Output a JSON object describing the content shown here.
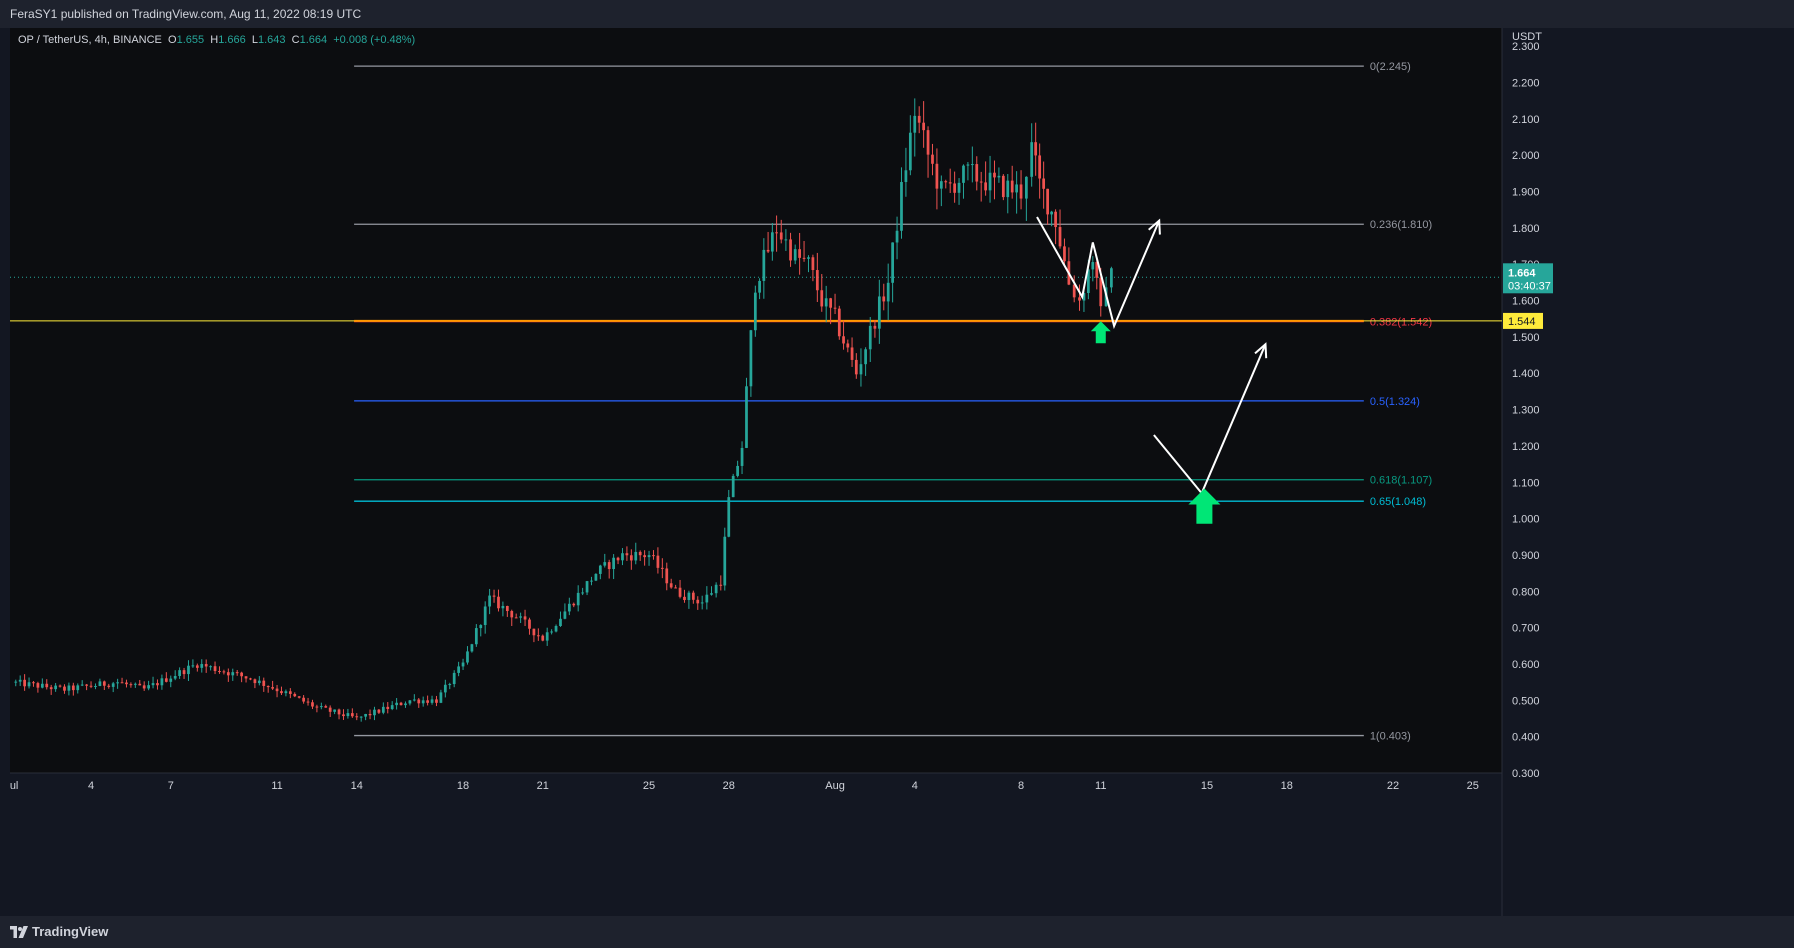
{
  "header": {
    "publish_line": "FeraSY1 published on TradingView.com, Aug 11, 2022 08:19 UTC"
  },
  "legend": {
    "symbol": "OP / TetherUS, 4h, BINANCE",
    "o_label": "O",
    "o_value": "1.655",
    "h_label": "H",
    "h_value": "1.666",
    "l_label": "L",
    "l_value": "1.643",
    "c_label": "C",
    "c_value": "1.664",
    "change": "+0.008 (+0.48%)"
  },
  "footer": {
    "brand": "TradingView"
  },
  "colors": {
    "background": "#131722",
    "panel": "#1e222d",
    "bullish": "#26a69a",
    "bearish": "#ef5350",
    "support_line": "#ff9800",
    "price_tag": "#26a69a",
    "level_tag": "#ffeb3b",
    "arrow_green": "#00e676",
    "path_white": "#ffffff"
  },
  "icons": {
    "logo": "tradingview-logo-icon",
    "up_arrow": "green-up-arrow-icon"
  },
  "chart_data": {
    "type": "candlestick",
    "y_axis": {
      "unit_label": "USDT",
      "min": 0.3,
      "max": 2.35,
      "ticks": [
        0.3,
        0.4,
        0.5,
        0.6,
        0.7,
        0.8,
        0.9,
        1.0,
        1.1,
        1.2,
        1.3,
        1.4,
        1.5,
        1.6,
        1.7,
        1.8,
        1.9,
        2.0,
        2.1,
        2.2,
        2.3
      ],
      "tick_labels": [
        "0.300",
        "0.400",
        "0.500",
        "0.600",
        "0.700",
        "0.800",
        "0.900",
        "1.000",
        "1.100",
        "1.200",
        "1.300",
        "1.400",
        "1.500",
        "1.600",
        "1.700",
        "1.800",
        "1.900",
        "2.000",
        "2.100",
        "2.200",
        "2.300"
      ]
    },
    "x_axis": {
      "labels": [
        {
          "day": 0,
          "text": "Jul"
        },
        {
          "day": 3,
          "text": "4"
        },
        {
          "day": 6,
          "text": "7"
        },
        {
          "day": 10,
          "text": "11"
        },
        {
          "day": 13,
          "text": "14"
        },
        {
          "day": 17,
          "text": "18"
        },
        {
          "day": 20,
          "text": "21"
        },
        {
          "day": 24,
          "text": "25"
        },
        {
          "day": 27,
          "text": "28"
        },
        {
          "day": 31,
          "text": "Aug"
        },
        {
          "day": 34,
          "text": "4"
        },
        {
          "day": 38,
          "text": "8"
        },
        {
          "day": 41,
          "text": "11"
        },
        {
          "day": 45,
          "text": "15"
        },
        {
          "day": 48,
          "text": "18"
        },
        {
          "day": 52,
          "text": "22"
        },
        {
          "day": 55,
          "text": "25"
        }
      ],
      "day_min": -0.05,
      "day_max": 56.1
    },
    "fib_levels": [
      {
        "ratio": "0",
        "price": 2.245,
        "label": "0(2.245)",
        "color": "#9598a1"
      },
      {
        "ratio": "0.236",
        "price": 1.81,
        "label": "0.236(1.810)",
        "color": "#9598a1"
      },
      {
        "ratio": "0.382",
        "price": 1.542,
        "label": "0.382(1.542)",
        "color": "#f23645"
      },
      {
        "ratio": "0.5",
        "price": 1.324,
        "label": "0.5(1.324)",
        "color": "#2962ff"
      },
      {
        "ratio": "0.618",
        "price": 1.107,
        "label": "0.618(1.107)",
        "color": "#089981"
      },
      {
        "ratio": "0.65",
        "price": 1.048,
        "label": "0.65(1.048)",
        "color": "#00bcd4"
      },
      {
        "ratio": "1",
        "price": 0.403,
        "label": "1(0.403)",
        "color": "#9598a1"
      }
    ],
    "fib_start_day": 12.9,
    "fib_end_day": 50.9,
    "support_line": {
      "price": 1.544,
      "label": "1.544"
    },
    "last_price": {
      "price": 1.664,
      "label": "1.664",
      "countdown": "03:40:37"
    },
    "waypoints": [
      {
        "day": 0,
        "price": 0.55
      },
      {
        "day": 2,
        "price": 0.53
      },
      {
        "day": 4,
        "price": 0.55
      },
      {
        "day": 5,
        "price": 0.53
      },
      {
        "day": 7,
        "price": 0.6
      },
      {
        "day": 9,
        "price": 0.56
      },
      {
        "day": 10,
        "price": 0.53
      },
      {
        "day": 11.5,
        "price": 0.48
      },
      {
        "day": 13,
        "price": 0.45
      },
      {
        "day": 15,
        "price": 0.5
      },
      {
        "day": 16,
        "price": 0.5
      },
      {
        "day": 17,
        "price": 0.6
      },
      {
        "day": 18,
        "price": 0.78
      },
      {
        "day": 19,
        "price": 0.73
      },
      {
        "day": 20,
        "price": 0.67
      },
      {
        "day": 21,
        "price": 0.76
      },
      {
        "day": 22,
        "price": 0.85
      },
      {
        "day": 23,
        "price": 0.9
      },
      {
        "day": 24,
        "price": 0.9
      },
      {
        "day": 25,
        "price": 0.8
      },
      {
        "day": 26,
        "price": 0.77
      },
      {
        "day": 26.7,
        "price": 0.83
      },
      {
        "day": 27,
        "price": 1.05
      },
      {
        "day": 27.5,
        "price": 1.2
      },
      {
        "day": 28,
        "price": 1.65
      },
      {
        "day": 28.8,
        "price": 1.8
      },
      {
        "day": 29.5,
        "price": 1.72
      },
      {
        "day": 30,
        "price": 1.7
      },
      {
        "day": 30.5,
        "price": 1.6
      },
      {
        "day": 31,
        "price": 1.55
      },
      {
        "day": 31.8,
        "price": 1.4
      },
      {
        "day": 32.5,
        "price": 1.55
      },
      {
        "day": 33,
        "price": 1.65
      },
      {
        "day": 33.5,
        "price": 1.9
      },
      {
        "day": 34,
        "price": 2.12
      },
      {
        "day": 34.5,
        "price": 2.0
      },
      {
        "day": 35,
        "price": 1.9
      },
      {
        "day": 36,
        "price": 1.95
      },
      {
        "day": 37,
        "price": 1.92
      },
      {
        "day": 38,
        "price": 1.9
      },
      {
        "day": 38.4,
        "price": 2.02
      },
      {
        "day": 38.7,
        "price": 1.92
      },
      {
        "day": 39.3,
        "price": 1.82
      },
      {
        "day": 39.8,
        "price": 1.65
      },
      {
        "day": 40.2,
        "price": 1.6
      },
      {
        "day": 40.7,
        "price": 1.72
      },
      {
        "day": 41,
        "price": 1.56
      },
      {
        "day": 41.2,
        "price": 1.66
      },
      {
        "day": 41.4,
        "price": 1.664
      }
    ],
    "volatility": 0.018,
    "annotations": {
      "scenario_1": [
        {
          "day": 38.6,
          "price": 1.83
        },
        {
          "day": 40.3,
          "price": 1.61
        },
        {
          "day": 40.7,
          "price": 1.76
        },
        {
          "day": 41.5,
          "price": 1.53
        },
        {
          "day": 43.2,
          "price": 1.82
        }
      ],
      "scenario_2": [
        {
          "day": 43.0,
          "price": 1.23
        },
        {
          "day": 44.8,
          "price": 1.07
        },
        {
          "day": 47.2,
          "price": 1.48
        }
      ],
      "green_arrows": [
        {
          "day": 41.0,
          "price": 1.51,
          "size": "small"
        },
        {
          "day": 44.9,
          "price": 1.03,
          "size": "large"
        }
      ]
    }
  }
}
